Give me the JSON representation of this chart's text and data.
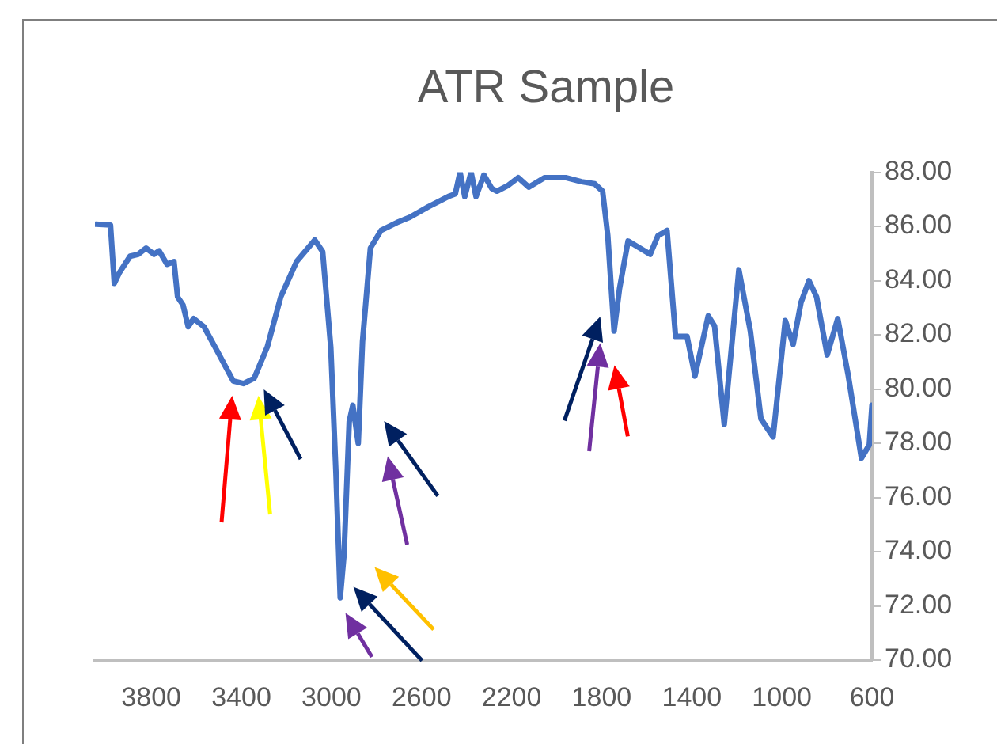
{
  "chart_data": {
    "type": "line",
    "title": "ATR Sample",
    "x": [
      4046,
      3981,
      3964,
      3941,
      3894,
      3858,
      3823,
      3788,
      3765,
      3730,
      3699,
      3683,
      3659,
      3636,
      3612,
      3566,
      3507,
      3436,
      3390,
      3343,
      3285,
      3225,
      3155,
      3074,
      3039,
      3003,
      2980,
      2961,
      2944,
      2921,
      2905,
      2881,
      2862,
      2827,
      2780,
      2710,
      2652,
      2569,
      2476,
      2450,
      2429,
      2408,
      2380,
      2358,
      2323,
      2288,
      2265,
      2218,
      2171,
      2124,
      2054,
      1960,
      1889,
      1831,
      1796,
      1773,
      1745,
      1721,
      1683,
      1585,
      1550,
      1510,
      1472,
      1421,
      1386,
      1327,
      1299,
      1256,
      1191,
      1140,
      1093,
      1039,
      985,
      950,
      915,
      880,
      846,
      799,
      752,
      705,
      647,
      612,
      600
    ],
    "series": [
      {
        "color": "#4472c4",
        "values": [
          86.08,
          86.05,
          83.9,
          84.3,
          84.9,
          84.97,
          85.2,
          84.97,
          85.1,
          84.6,
          84.7,
          83.4,
          83.1,
          82.3,
          82.6,
          82.3,
          81.4,
          80.3,
          80.2,
          80.4,
          81.55,
          83.4,
          84.7,
          85.5,
          85.07,
          81.55,
          76.9,
          72.3,
          73.9,
          78.8,
          79.4,
          78.0,
          81.75,
          85.2,
          85.85,
          86.14,
          86.34,
          86.73,
          87.12,
          87.2,
          88,
          87.1,
          88,
          87.1,
          87.9,
          87.4,
          87.3,
          87.5,
          87.8,
          87.45,
          87.8,
          87.8,
          87.65,
          87.57,
          87.3,
          85.66,
          82.14,
          83.7,
          85.46,
          84.97,
          85.66,
          85.85,
          81.94,
          81.94,
          80.48,
          82.7,
          82.33,
          78.7,
          84.4,
          82.14,
          78.9,
          78.23,
          82.53,
          81.65,
          83.2,
          84.0,
          83.4,
          81.26,
          82.6,
          80.48,
          77.45,
          77.94,
          79.4
        ]
      }
    ],
    "xlim": [
      4050,
      600
    ],
    "xticks": [
      3800,
      3400,
      3000,
      2600,
      2200,
      1800,
      1400,
      1000,
      600
    ],
    "ylim": [
      70,
      88
    ],
    "yticks": [
      {
        "value": 70,
        "label": "70.00"
      },
      {
        "value": 72,
        "label": "72.00"
      },
      {
        "value": 74,
        "label": "74.00"
      },
      {
        "value": 76,
        "label": "76.00"
      },
      {
        "value": 78,
        "label": "78.00"
      },
      {
        "value": 80,
        "label": "80.00"
      },
      {
        "value": 82,
        "label": "82.00"
      },
      {
        "value": 84,
        "label": "84.00"
      },
      {
        "value": 86,
        "label": "86.00"
      },
      {
        "value": 88,
        "label": "88.00"
      }
    ],
    "grid": false,
    "legend": false,
    "marker": "none",
    "line_style": "solid"
  }
}
